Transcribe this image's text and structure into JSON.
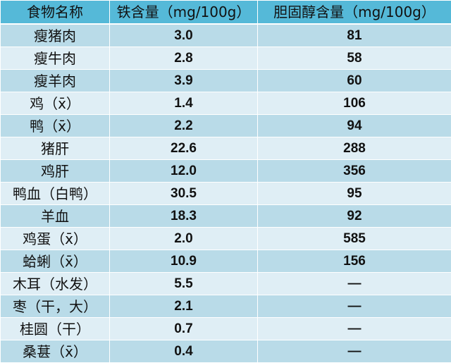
{
  "colors": {
    "header_bg": "#55b9d8",
    "row_dark": "#b9dbe8",
    "row_light": "#dfeef5"
  },
  "table": {
    "headers": [
      "食物名称",
      "铁含量（mg/100g）",
      "胆固醇含量（mg/100g）"
    ],
    "rows": [
      {
        "food": "瘦猪肉",
        "iron": "3.0",
        "chol": "81"
      },
      {
        "food": "瘦牛肉",
        "iron": "2.8",
        "chol": "58"
      },
      {
        "food": "瘦羊肉",
        "iron": "3.9",
        "chol": "60"
      },
      {
        "food": "鸡（x̄）",
        "iron": "1.4",
        "chol": "106"
      },
      {
        "food": "鸭（x̄）",
        "iron": "2.2",
        "chol": "94"
      },
      {
        "food": "猪肝",
        "iron": "22.6",
        "chol": "288"
      },
      {
        "food": "鸡肝",
        "iron": "12.0",
        "chol": "356"
      },
      {
        "food": "鸭血（白鸭）",
        "iron": "30.5",
        "chol": "95"
      },
      {
        "food": "羊血",
        "iron": "18.3",
        "chol": "92"
      },
      {
        "food": "鸡蛋（x̄）",
        "iron": "2.0",
        "chol": "585"
      },
      {
        "food": "蛤蜊（x̄）",
        "iron": "10.9",
        "chol": "156"
      },
      {
        "food": "木耳（水发）",
        "iron": "5.5",
        "chol": "—"
      },
      {
        "food": "枣（干，大）",
        "iron": "2.1",
        "chol": "—"
      },
      {
        "food": "桂圆（干）",
        "iron": "0.7",
        "chol": "—"
      },
      {
        "food": "桑葚（x̄）",
        "iron": "0.4",
        "chol": "—"
      }
    ]
  }
}
